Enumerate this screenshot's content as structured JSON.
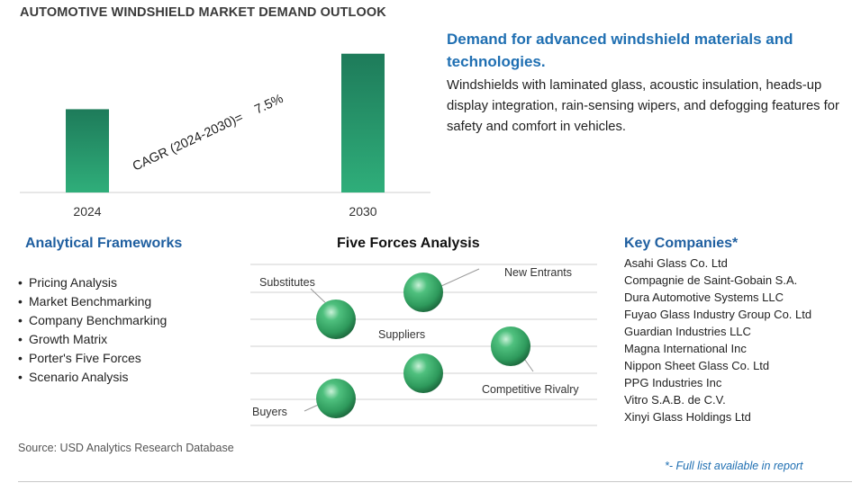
{
  "title": "AUTOMOTIVE WINDSHIELD MARKET DEMAND OUTLOOK",
  "chart_data": {
    "type": "bar",
    "categories": [
      "2024",
      "2030"
    ],
    "values": [
      0.6,
      1.0
    ],
    "title": "AUTOMOTIVE WINDSHIELD MARKET DEMAND OUTLOOK",
    "xlabel": "",
    "ylabel": "",
    "ylim": [
      0,
      1.05
    ],
    "grid": false,
    "annotation": "CAGR (2024-2030)=    7.5%",
    "bar_color_top": "#1e7b5a",
    "bar_color_bottom": "#2fae7a"
  },
  "demand": {
    "heading": "Demand for advanced windshield materials and technologies.",
    "text": "Windshields with laminated glass, acoustic insulation, heads-up display integration, rain-sensing wipers, and defogging features for safety and comfort in vehicles."
  },
  "frameworks": {
    "heading": "Analytical Frameworks",
    "items": [
      "Pricing Analysis",
      "Market Benchmarking",
      "Company Benchmarking",
      "Growth Matrix",
      "Porter's Five Forces",
      "Scenario Analysis"
    ]
  },
  "five_forces": {
    "heading": "Five Forces Analysis",
    "labels": {
      "substitutes": "Substitutes",
      "new_entrants": "New Entrants",
      "suppliers": "Suppliers",
      "competitive_rivalry": "Competitive Rivalry",
      "buyers": "Buyers"
    },
    "sphere_color": "#2e9a5c"
  },
  "companies": {
    "heading": "Key Companies*",
    "items": [
      "Asahi Glass Co. Ltd",
      "Compagnie de Saint-Gobain S.A.",
      "Dura Automotive Systems LLC",
      "Fuyao Glass Industry Group Co. Ltd",
      "Guardian Industries LLC",
      "Magna International Inc",
      "Nippon Sheet Glass Co. Ltd",
      "PPG Industries Inc",
      "Vitro S.A.B. de C.V.",
      "Xinyi Glass Holdings Ltd"
    ]
  },
  "source": "Source: USD Analytics Research Database",
  "footnote": "*- Full list available in report"
}
